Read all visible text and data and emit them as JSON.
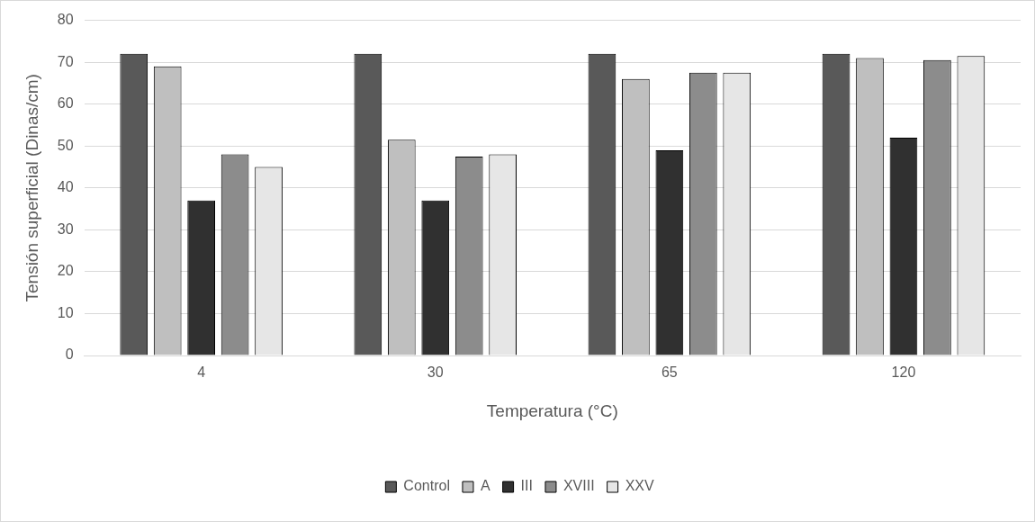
{
  "chart_data": {
    "type": "bar",
    "xlabel": "Temperatura (°C)",
    "ylabel": "Tensión superficial (Dinas/cm)",
    "categories": [
      "4",
      "30",
      "65",
      "120"
    ],
    "series": [
      {
        "name": "Control",
        "color": "#595959",
        "values": [
          72,
          72,
          72,
          72
        ]
      },
      {
        "name": "A",
        "color": "#bfbfbf",
        "values": [
          69,
          51.5,
          66,
          71
        ]
      },
      {
        "name": "III",
        "color": "#303030",
        "values": [
          37,
          37,
          49,
          52
        ]
      },
      {
        "name": "XVIII",
        "color": "#8c8c8c",
        "values": [
          48,
          47.5,
          67.5,
          70.5
        ]
      },
      {
        "name": "XXV",
        "color": "#e6e6e6",
        "values": [
          45,
          48,
          67.5,
          71.5
        ]
      }
    ],
    "ylim": [
      0,
      80
    ],
    "yticks": [
      0,
      10,
      20,
      30,
      40,
      50,
      60,
      70,
      80
    ],
    "grid": "y",
    "legend": "bottom"
  }
}
